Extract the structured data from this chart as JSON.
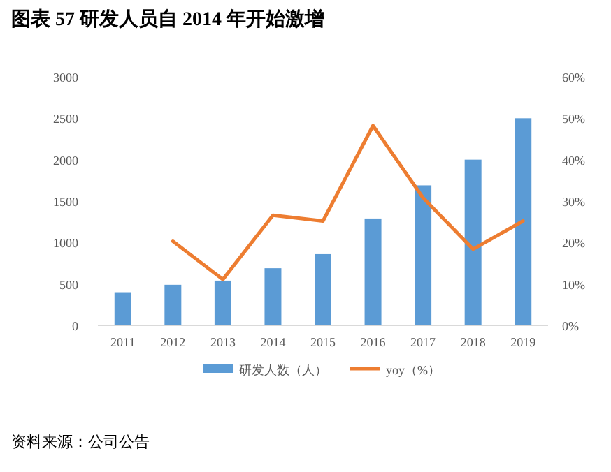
{
  "chart_data": {
    "type": "bar",
    "title": "图表 57 研发人员自 2014 年开始激增",
    "categories": [
      "2011",
      "2012",
      "2013",
      "2014",
      "2015",
      "2016",
      "2017",
      "2018",
      "2019"
    ],
    "series": [
      {
        "name": "研发人数（人）",
        "color": "#5b9bd5",
        "values": [
          400,
          490,
          540,
          690,
          860,
          1290,
          1690,
          2000,
          2500
        ]
      },
      {
        "name": "yoy（%）",
        "type": "line",
        "axis": "y2",
        "color": "#ed7d31",
        "values": [
          null,
          20.3,
          11.1,
          26.6,
          25.2,
          48.2,
          30.8,
          18.4,
          25.2
        ]
      }
    ],
    "ylim": [
      0,
      3000
    ],
    "yticks": [
      0,
      500,
      1000,
      1500,
      2000,
      2500,
      3000
    ],
    "y2lim": [
      0,
      60
    ],
    "y2ticks": [
      {
        "value": 0,
        "label": "0%"
      },
      {
        "value": 10,
        "label": "10%"
      },
      {
        "value": 20,
        "label": "20%"
      },
      {
        "value": 30,
        "label": "30%"
      },
      {
        "value": 40,
        "label": "40%"
      },
      {
        "value": 50,
        "label": "50%"
      },
      {
        "value": 60,
        "label": "60%"
      }
    ],
    "legend": "bottom",
    "grid": false,
    "annotations": [
      "资料来源：公司公告"
    ]
  }
}
